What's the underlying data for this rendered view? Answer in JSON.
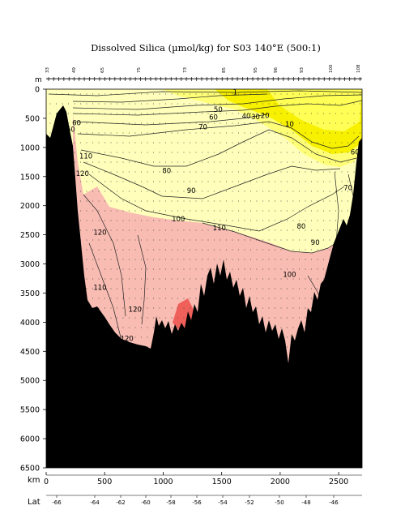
{
  "chart_data": {
    "type": "contour",
    "title": "Dissolved Silica (µmol/kg) for S03 140°E (500:1)",
    "y_axis": {
      "label": "m",
      "range": [
        0,
        6500
      ],
      "ticks": [
        0,
        500,
        1000,
        1500,
        2000,
        2500,
        3000,
        3500,
        4000,
        4500,
        5000,
        5500,
        6000,
        6500
      ]
    },
    "x_axis": {
      "label": "km",
      "range": [
        0,
        2700
      ],
      "ticks": [
        0,
        500,
        1000,
        1500,
        2000,
        2500
      ]
    },
    "lat_axis": {
      "label": "Lat",
      "ticks": [
        -66,
        -64,
        -62,
        -60,
        -58,
        -56,
        -54,
        -52,
        -50,
        -48,
        -46
      ]
    },
    "station_numbers": [
      "33",
      "49",
      "65",
      "75",
      "73",
      "85",
      "95",
      "96",
      "93",
      "100",
      "108"
    ],
    "contour_levels": [
      1,
      10,
      20,
      30,
      40,
      50,
      60,
      70,
      80,
      90,
      100,
      110,
      120
    ],
    "contour_labels": [
      {
        "text": "1",
        "km": 1615,
        "depth": 50
      },
      {
        "text": "10",
        "km": 2080,
        "depth": 600
      },
      {
        "text": "20",
        "km": 1870,
        "depth": 450
      },
      {
        "text": "30",
        "km": 1790,
        "depth": 470
      },
      {
        "text": "40",
        "km": 1710,
        "depth": 460
      },
      {
        "text": "50",
        "km": 1470,
        "depth": 350
      },
      {
        "text": "60",
        "km": 1430,
        "depth": 480
      },
      {
        "text": "60",
        "km": 2640,
        "depth": 1080
      },
      {
        "text": "70",
        "km": 1340,
        "depth": 650
      },
      {
        "text": "70",
        "km": 2580,
        "depth": 1690
      },
      {
        "text": "80",
        "km": 1030,
        "depth": 1400
      },
      {
        "text": "80",
        "km": 2180,
        "depth": 2350
      },
      {
        "text": "90",
        "km": 1240,
        "depth": 1740
      },
      {
        "text": "90",
        "km": 2300,
        "depth": 2630
      },
      {
        "text": "100",
        "km": 1130,
        "depth": 2230
      },
      {
        "text": "100",
        "km": 2080,
        "depth": 3180
      },
      {
        "text": "110",
        "km": 1480,
        "depth": 2380
      },
      {
        "text": "110",
        "km": 340,
        "depth": 1150
      },
      {
        "text": "110",
        "km": 460,
        "depth": 3400
      },
      {
        "text": "120",
        "km": 310,
        "depth": 1450
      },
      {
        "text": "120",
        "km": 460,
        "depth": 2460
      },
      {
        "text": "120",
        "km": 760,
        "depth": 3780
      },
      {
        "text": "120",
        "km": 690,
        "depth": 4280
      },
      {
        "text": "120",
        "km": 260,
        "depth": 3530
      },
      {
        "text": "60",
        "km": 260,
        "depth": 580
      },
      {
        "text": "60",
        "km": 210,
        "depth": 690
      }
    ],
    "fill_colors": {
      "low": "#f7f100",
      "mid_low": "#ffff77",
      "mid": "#ffffbb",
      "high": "#f8bcb2",
      "very_high": "#f0605a",
      "bottom": "#000000"
    }
  },
  "logo_text": "WOCE HYDROGRAPHIC ATLAS",
  "footer_label": "Computer Generated"
}
